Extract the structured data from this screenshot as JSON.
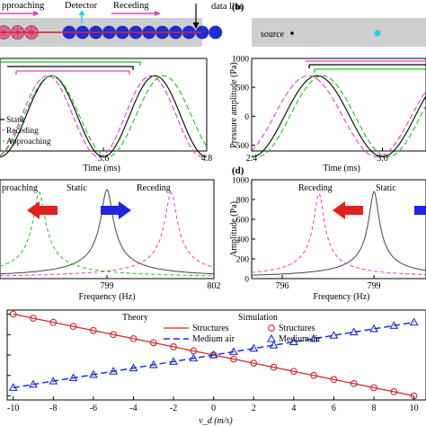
{
  "colors": {
    "red": "#d62728",
    "magenta": "#e040c0",
    "green": "#22c022",
    "blue": "#1d2fd1",
    "cyan": "#18d6e8",
    "gray": "#444444",
    "pink": "#e86a9a",
    "bar_gray": "#cfcfcf",
    "arrow_red": "#e32020",
    "arrow_blue": "#2323e6"
  },
  "icons": [
    "left-arrow-red-icon",
    "right-arrow-blue-icon",
    "down-arrow-icon",
    "detector-arrow-icon"
  ],
  "panel_a_top": {
    "approaching_label": "pproaching",
    "detector_label": "Detector",
    "receding_label": "Receding",
    "data_line_label": "data line"
  },
  "panel_b_top": {
    "panel_label": "(b)",
    "source_label": "source"
  },
  "panel_d": {
    "panel_label": "(d)"
  },
  "chart_data": [
    {
      "type": "line",
      "panel": "a",
      "xlabel": "Time (ms)",
      "xlim": [
        2.4,
        4.8
      ],
      "xticks": [
        3.6,
        4.8
      ],
      "ylim": [
        -600,
        1000
      ],
      "series": [
        {
          "name": "Static",
          "color": "#000000",
          "dash": "solid",
          "peak_time": 4.2,
          "trough_time": 3.6,
          "amplitude": 700
        },
        {
          "name": "Receding",
          "color": "#e040c0",
          "dash": "6,3",
          "peak_time": 4.15,
          "trough_time": 3.55,
          "amplitude": 700
        },
        {
          "name": "Approaching",
          "color": "#22c022",
          "dash": "6,3",
          "peak_time": 4.3,
          "trough_time": 3.65,
          "amplitude": 700
        }
      ]
    },
    {
      "type": "line",
      "panel": "b",
      "xlabel": "Time (ms)",
      "ylabel": "Pressure amplitude (Pa)",
      "xlim": [
        2.4,
        4.0
      ],
      "xticks": [
        2.4,
        3.6
      ],
      "ylim": [
        -600,
        1000
      ],
      "yticks": [
        -500,
        0,
        500,
        1000
      ],
      "series": [
        {
          "name": "Static",
          "color": "#000000",
          "dash": "solid",
          "peak_time": 3.0,
          "trough_time": 3.6,
          "amplitude": 700
        },
        {
          "name": "Receding",
          "color": "#e040c0",
          "dash": "6,3",
          "peak_time": 2.92,
          "trough_time": 3.55,
          "amplitude": 700
        },
        {
          "name": "Approaching",
          "color": "#22c022",
          "dash": "6,3",
          "peak_time": 3.05,
          "trough_time": 3.65,
          "amplitude": 700
        }
      ]
    },
    {
      "type": "line",
      "panel": "c",
      "xlabel": "Frequency (Hz)",
      "xlim": [
        796,
        802
      ],
      "xticks": [
        799,
        802
      ],
      "ylim": [
        0,
        1000
      ],
      "annotations": {
        "left": "proaching",
        "center": "Static",
        "right": "Receding"
      },
      "series": [
        {
          "name": "Static",
          "color": "#444444",
          "dash": "solid",
          "center": 799,
          "peak": 900,
          "width": 0.16
        },
        {
          "name": "Receding",
          "color": "#e040c0",
          "dash": "4,3",
          "center": 800.8,
          "peak": 870,
          "width": 0.16
        },
        {
          "name": "Approaching",
          "color": "#22c022",
          "dash": "4,3",
          "center": 797.1,
          "peak": 870,
          "width": 0.16
        }
      ]
    },
    {
      "type": "line",
      "panel": "d",
      "xlabel": "Frequency (Hz)",
      "ylabel": "Amplitude (Pa)",
      "xlim": [
        795,
        800.7
      ],
      "xticks": [
        796,
        799
      ],
      "ylim": [
        0,
        1000
      ],
      "yticks": [
        0,
        200,
        400,
        600,
        800,
        1000
      ],
      "annotations": {
        "left": "Receding",
        "right": "Static"
      },
      "series": [
        {
          "name": "Static",
          "color": "#444444",
          "dash": "solid",
          "center": 799,
          "peak": 880,
          "width": 0.16
        },
        {
          "name": "Receding",
          "color": "#e040c0",
          "dash": "4,3",
          "center": 797.2,
          "peak": 860,
          "width": 0.16
        }
      ]
    },
    {
      "type": "line",
      "panel": "e",
      "xlabel": "v_d (m/s)",
      "xlim": [
        -10.3,
        10.6
      ],
      "xticks": [
        -10,
        -8,
        -6,
        -4,
        -2,
        0,
        2,
        4,
        6,
        8,
        10
      ],
      "legend": {
        "theory_title": "Theory",
        "simulation_title": "Simulation",
        "entries": [
          "Structures",
          "Medium air",
          "Structures",
          "Medium air"
        ]
      },
      "series": [
        {
          "name": "Structures",
          "color": "#d62728",
          "marker": "circle",
          "x": [
            -10,
            -9,
            -8,
            -7,
            -6,
            -5,
            -4,
            -3,
            -2,
            -1,
            0,
            1,
            2,
            3,
            4,
            5,
            6,
            7,
            8,
            9,
            10
          ],
          "y": [
            30,
            27,
            24,
            21,
            18,
            15,
            12,
            9,
            6,
            3,
            0,
            -3,
            -6,
            -9,
            -12,
            -15,
            -18,
            -21,
            -24,
            -27,
            -30
          ]
        },
        {
          "name": "Medium air",
          "color": "#1d2fd1",
          "marker": "triangle",
          "x": [
            -10,
            -9,
            -8,
            -7,
            -6,
            -5,
            -4,
            -3,
            -2,
            -1,
            0,
            1,
            2,
            3,
            4,
            5,
            6,
            7,
            8,
            9,
            10
          ],
          "y": [
            -24,
            -21.6,
            -19.2,
            -16.8,
            -14.4,
            -12,
            -9.6,
            -7.2,
            -4.8,
            -2.4,
            0,
            2.4,
            4.8,
            7.2,
            9.6,
            12,
            14.4,
            16.8,
            19.2,
            21.6,
            24
          ]
        }
      ]
    }
  ]
}
